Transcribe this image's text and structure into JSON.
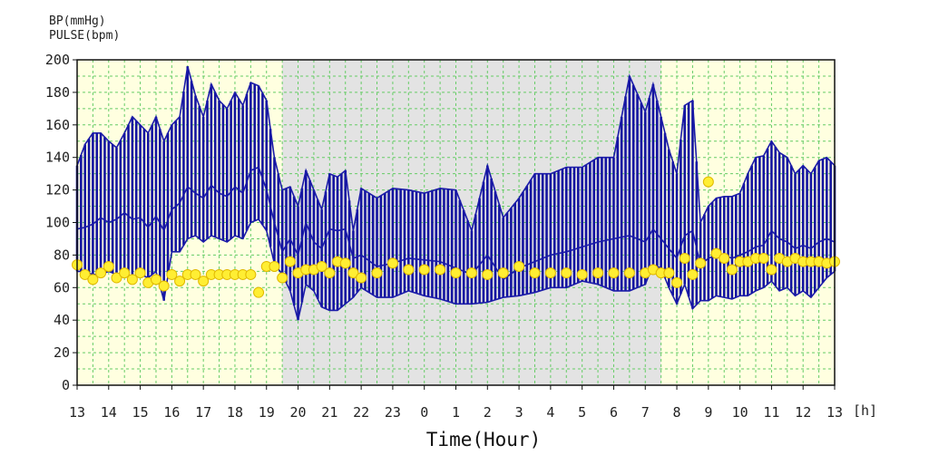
{
  "chart_data": {
    "type": "line",
    "ylabel_lines": [
      "BP(mmHg)",
      "PULSE(bpm)"
    ],
    "xlabel": "Time(Hour)",
    "x_unit": "[h]",
    "ylim": [
      0,
      200
    ],
    "y_ticks": [
      0,
      20,
      40,
      60,
      80,
      100,
      120,
      140,
      160,
      180,
      200
    ],
    "x_range_hours": [
      13,
      37
    ],
    "x_tick_labels": [
      "13",
      "14",
      "15",
      "16",
      "17",
      "18",
      "19",
      "20",
      "21",
      "22",
      "23",
      "0",
      "1",
      "2",
      "3",
      "4",
      "5",
      "6",
      "7",
      "8",
      "9",
      "10",
      "11",
      "12",
      "13"
    ],
    "grid": true,
    "shaded_period": {
      "from_hour": 19.5,
      "to_hour": 31.5,
      "color": "#e3e3e3"
    },
    "background_color": "#ffffe0",
    "colors": {
      "bp": "#1a1aa8",
      "bp_band": "#1414a0",
      "pulse_fill": "#ffee33",
      "pulse_stroke": "#e0b800",
      "grid": "#66cc66"
    },
    "series": [
      {
        "key": "systolic",
        "x": [
          13.0,
          13.25,
          13.5,
          13.75,
          14.0,
          14.25,
          14.5,
          14.75,
          15.0,
          15.25,
          15.5,
          15.75,
          16.0,
          16.25,
          16.5,
          16.75,
          17.0,
          17.25,
          17.5,
          17.75,
          18.0,
          18.25,
          18.5,
          18.75,
          19.0,
          19.25,
          19.5,
          19.75,
          20.0,
          20.25,
          20.5,
          20.75,
          21.0,
          21.25,
          21.5,
          21.75,
          22.0,
          22.5,
          23.0,
          23.5,
          24.0,
          24.5,
          25.0,
          25.5,
          26.0,
          26.5,
          27.0,
          27.5,
          28.0,
          28.5,
          29.0,
          29.5,
          30.0,
          30.5,
          31.0,
          31.25,
          31.5,
          31.75,
          32.0,
          32.25,
          32.5,
          32.75,
          33.0,
          33.25,
          33.5,
          33.75,
          34.0,
          34.25,
          34.5,
          34.75,
          35.0,
          35.25,
          35.5,
          35.75,
          36.0,
          36.25,
          36.5,
          36.75,
          37.0
        ],
        "values": [
          135,
          148,
          155,
          155,
          150,
          146,
          155,
          165,
          160,
          155,
          165,
          150,
          160,
          165,
          196,
          178,
          165,
          185,
          175,
          170,
          180,
          172,
          186,
          184,
          175,
          140,
          120,
          122,
          110,
          132,
          120,
          108,
          130,
          128,
          132,
          95,
          121,
          115,
          121,
          120,
          118,
          121,
          120,
          95,
          135,
          103,
          115,
          130,
          130,
          134,
          134,
          140,
          140,
          190,
          168,
          185,
          165,
          145,
          130,
          172,
          175,
          100,
          110,
          115,
          116,
          116,
          118,
          130,
          140,
          141,
          150,
          143,
          140,
          130,
          135,
          130,
          138,
          140,
          135
        ]
      },
      {
        "key": "mean",
        "x": [
          13.0,
          13.25,
          13.5,
          13.75,
          14.0,
          14.25,
          14.5,
          14.75,
          15.0,
          15.25,
          15.5,
          15.75,
          16.0,
          16.25,
          16.5,
          16.75,
          17.0,
          17.25,
          17.5,
          17.75,
          18.0,
          18.25,
          18.5,
          18.75,
          19.0,
          19.25,
          19.5,
          19.75,
          20.0,
          20.25,
          20.5,
          20.75,
          21.0,
          21.25,
          21.5,
          21.75,
          22.0,
          22.5,
          23.0,
          23.5,
          24.0,
          24.5,
          25.0,
          25.5,
          26.0,
          26.5,
          27.0,
          27.5,
          28.0,
          28.5,
          29.0,
          29.5,
          30.0,
          30.5,
          31.0,
          31.25,
          31.5,
          31.75,
          32.0,
          32.25,
          32.5,
          32.75,
          33.0,
          33.25,
          33.5,
          33.75,
          34.0,
          34.25,
          34.5,
          34.75,
          35.0,
          35.25,
          35.5,
          35.75,
          36.0,
          36.25,
          36.5,
          36.75,
          37.0
        ],
        "values": [
          96,
          97,
          99,
          103,
          100,
          102,
          106,
          102,
          103,
          97,
          104,
          95,
          108,
          112,
          122,
          118,
          115,
          123,
          118,
          116,
          122,
          118,
          132,
          134,
          120,
          100,
          82,
          90,
          80,
          100,
          88,
          84,
          96,
          95,
          96,
          78,
          80,
          73,
          75,
          78,
          77,
          76,
          72,
          68,
          80,
          65,
          72,
          76,
          80,
          82,
          85,
          88,
          90,
          92,
          88,
          96,
          90,
          84,
          78,
          92,
          95,
          74,
          78,
          80,
          80,
          78,
          80,
          82,
          85,
          86,
          95,
          90,
          88,
          84,
          86,
          84,
          88,
          90,
          88
        ]
      },
      {
        "key": "diastolic",
        "x": [
          13.0,
          13.25,
          13.5,
          13.75,
          14.0,
          14.25,
          14.5,
          14.75,
          15.0,
          15.25,
          15.5,
          15.75,
          16.0,
          16.25,
          16.5,
          16.75,
          17.0,
          17.25,
          17.5,
          17.75,
          18.0,
          18.25,
          18.5,
          18.75,
          19.0,
          19.25,
          19.5,
          19.75,
          20.0,
          20.25,
          20.5,
          20.75,
          21.0,
          21.25,
          21.5,
          21.75,
          22.0,
          22.5,
          23.0,
          23.5,
          24.0,
          24.5,
          25.0,
          25.5,
          26.0,
          26.5,
          27.0,
          27.5,
          28.0,
          28.5,
          29.0,
          29.5,
          30.0,
          30.5,
          31.0,
          31.25,
          31.5,
          31.75,
          32.0,
          32.25,
          32.5,
          32.75,
          33.0,
          33.25,
          33.5,
          33.75,
          34.0,
          34.25,
          34.5,
          34.75,
          35.0,
          35.25,
          35.5,
          35.75,
          36.0,
          36.25,
          36.5,
          36.75,
          37.0
        ],
        "values": [
          70,
          70,
          68,
          68,
          70,
          68,
          70,
          65,
          68,
          66,
          70,
          52,
          82,
          82,
          90,
          92,
          88,
          92,
          90,
          88,
          92,
          90,
          100,
          102,
          95,
          75,
          68,
          58,
          40,
          62,
          58,
          48,
          46,
          46,
          50,
          54,
          60,
          54,
          54,
          58,
          55,
          53,
          50,
          50,
          51,
          54,
          55,
          57,
          60,
          60,
          64,
          62,
          58,
          58,
          62,
          74,
          72,
          60,
          50,
          62,
          47,
          52,
          52,
          55,
          54,
          53,
          55,
          55,
          58,
          60,
          64,
          58,
          60,
          55,
          58,
          54,
          60,
          66,
          70
        ]
      },
      {
        "key": "pulse",
        "x": [
          13.0,
          13.25,
          13.5,
          13.75,
          14.0,
          14.25,
          14.5,
          14.75,
          15.0,
          15.25,
          15.5,
          15.75,
          16.0,
          16.25,
          16.5,
          16.75,
          17.0,
          17.25,
          17.5,
          17.75,
          18.0,
          18.25,
          18.5,
          18.75,
          19.0,
          19.25,
          19.5,
          19.75,
          20.0,
          20.25,
          20.5,
          20.75,
          21.0,
          21.25,
          21.5,
          21.75,
          22.0,
          22.5,
          23.0,
          23.5,
          24.0,
          24.5,
          25.0,
          25.5,
          26.0,
          26.5,
          27.0,
          27.5,
          28.0,
          28.5,
          29.0,
          29.5,
          30.0,
          30.5,
          31.0,
          31.25,
          31.5,
          31.75,
          32.0,
          32.25,
          32.5,
          32.75,
          33.0,
          33.25,
          33.5,
          33.75,
          34.0,
          34.25,
          34.5,
          34.75,
          35.0,
          35.25,
          35.5,
          35.75,
          36.0,
          36.25,
          36.5,
          36.75,
          37.0
        ],
        "values": [
          74,
          68,
          65,
          69,
          73,
          66,
          69,
          65,
          69,
          63,
          65,
          61,
          68,
          64,
          68,
          68,
          64,
          68,
          68,
          68,
          68,
          68,
          68,
          57,
          73,
          73,
          66,
          76,
          69,
          71,
          71,
          73,
          69,
          76,
          75,
          69,
          66,
          69,
          75,
          71,
          71,
          71,
          69,
          69,
          68,
          69,
          73,
          69,
          69,
          69,
          68,
          69,
          69,
          69,
          69,
          71,
          69,
          69,
          63,
          78,
          68,
          75,
          125,
          81,
          78,
          71,
          76,
          76,
          78,
          78,
          71,
          78,
          76,
          78,
          76,
          76,
          76,
          75,
          76
        ]
      }
    ]
  }
}
